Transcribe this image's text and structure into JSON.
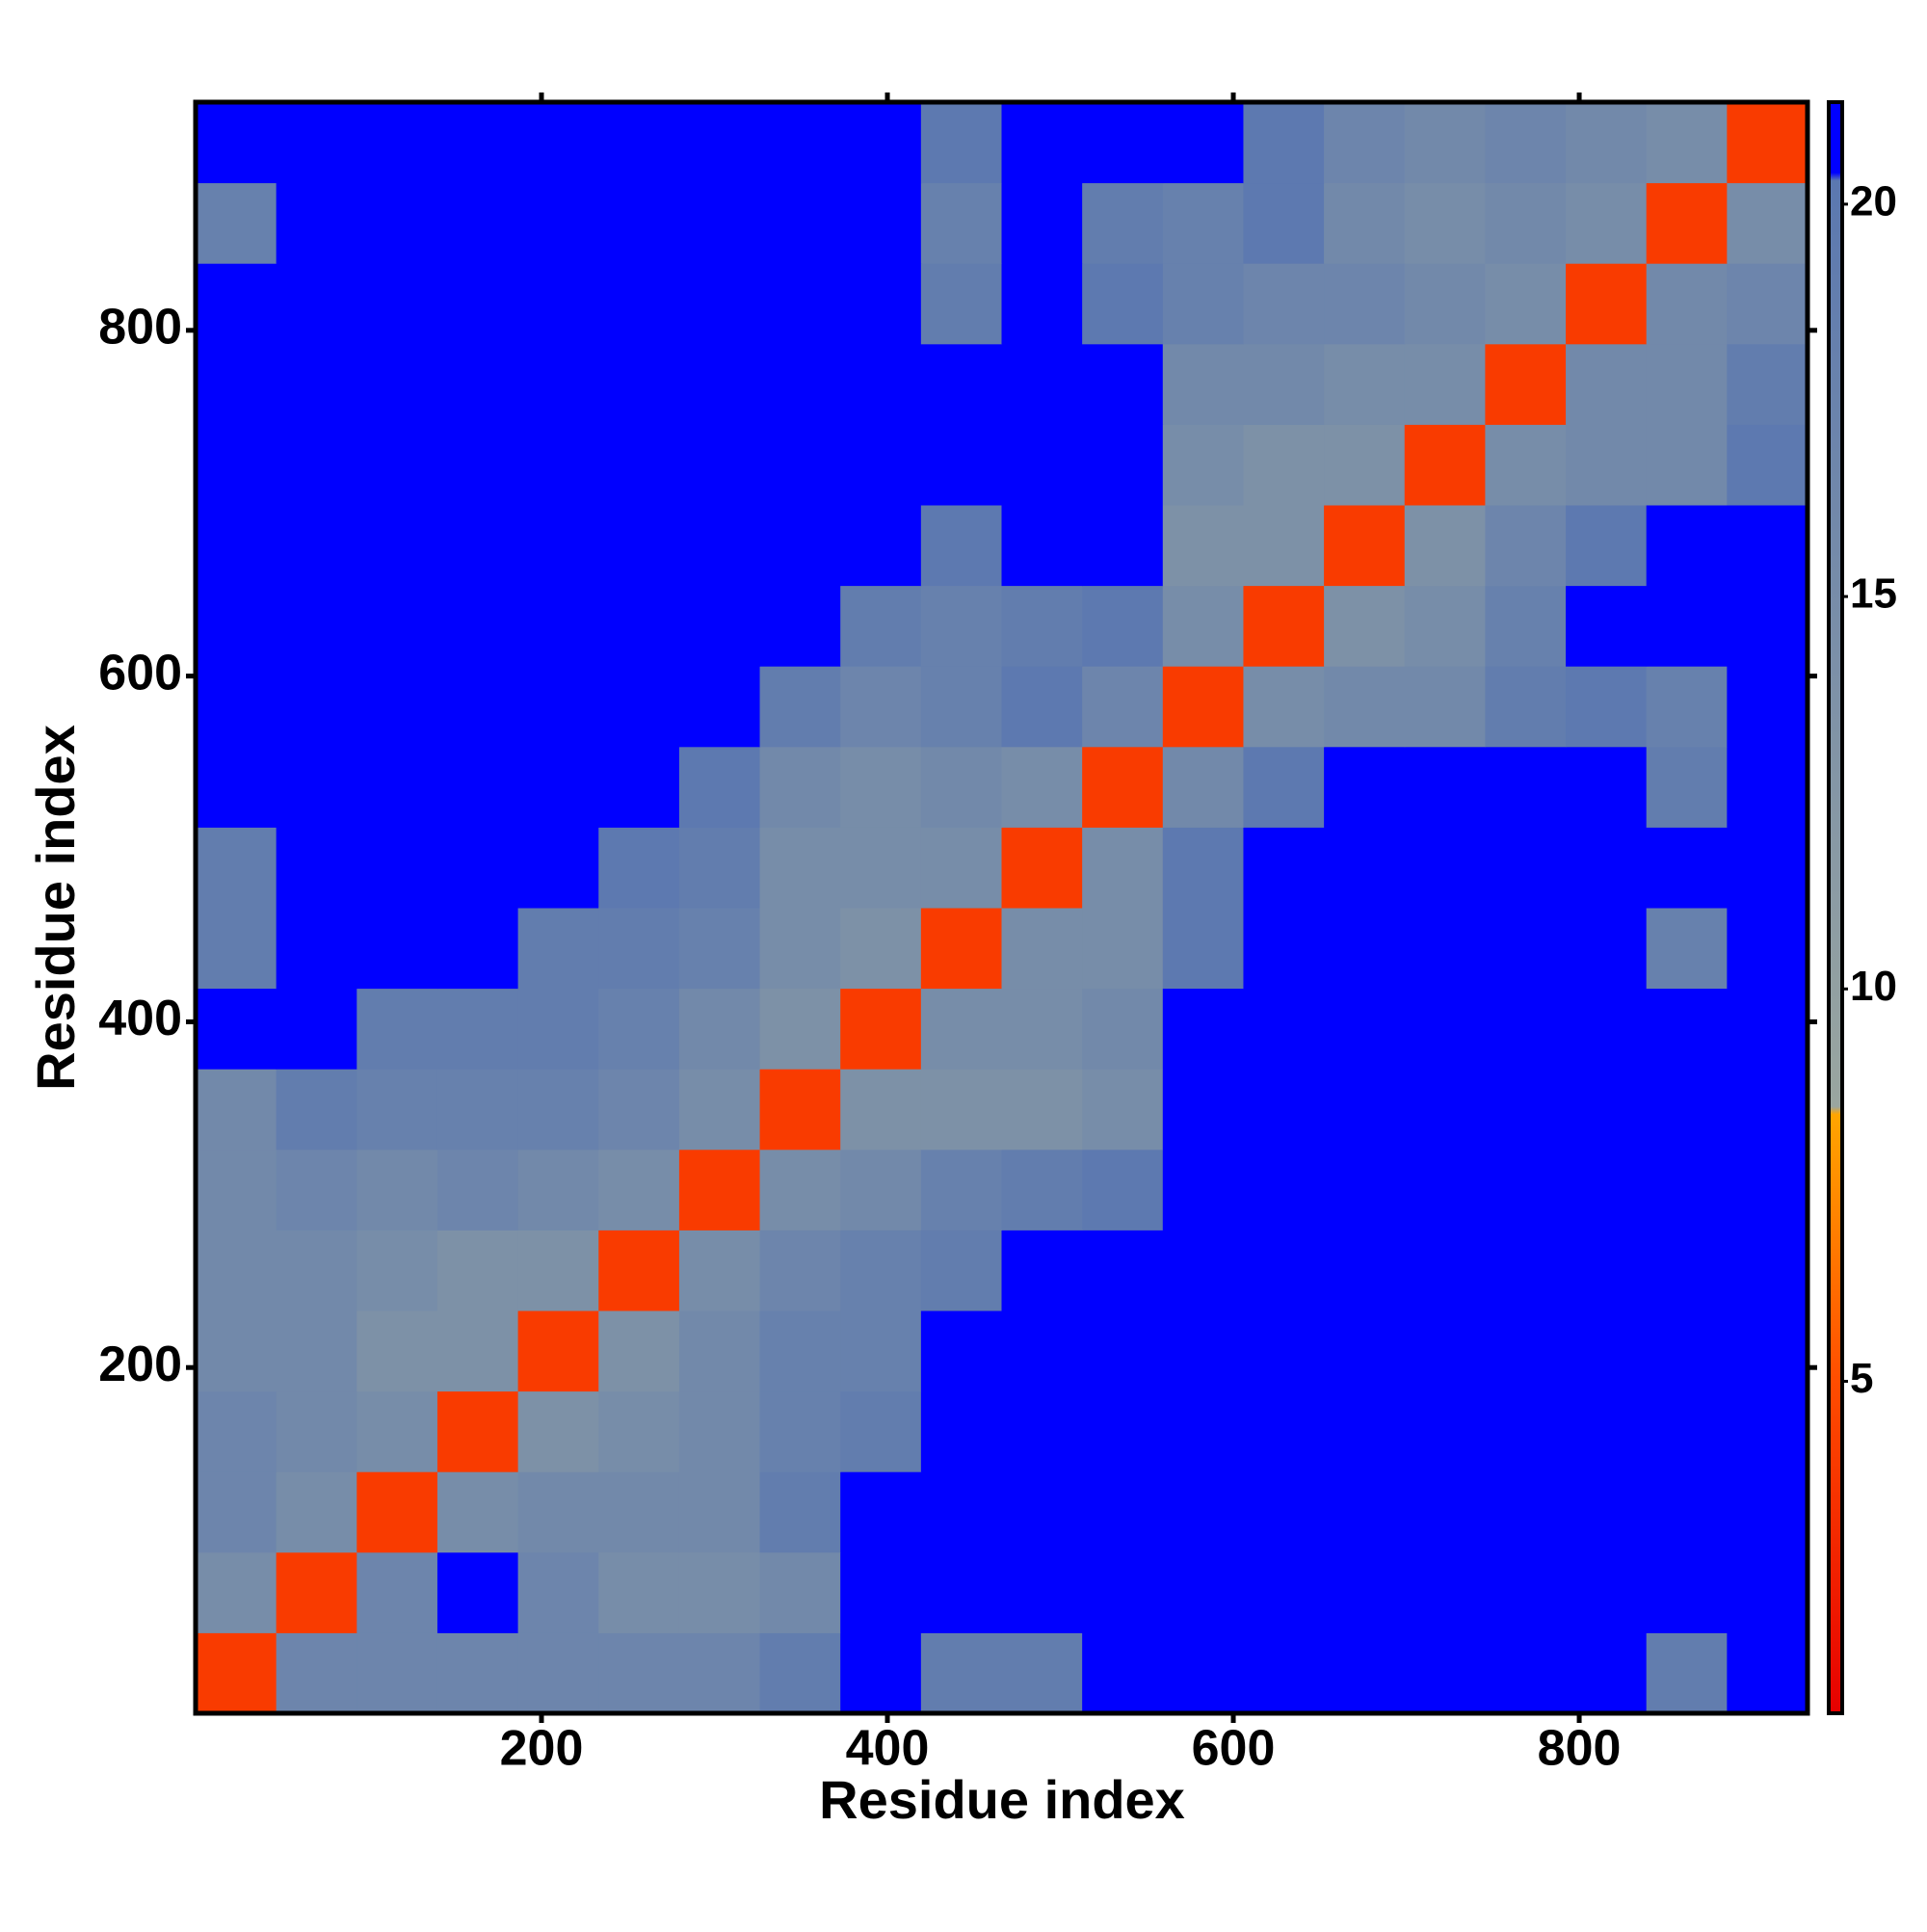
{
  "chart_data": {
    "type": "heatmap",
    "xlabel": "Residue index",
    "ylabel": "Residue index",
    "xlim": [
      0,
      932
    ],
    "ylim": [
      0,
      932
    ],
    "xticks": [
      200,
      400,
      600,
      800
    ],
    "yticks": [
      200,
      400,
      600,
      800
    ],
    "xbins": [
      0,
      46.6,
      93.2,
      139.8,
      186.4,
      233,
      279.6,
      326.2,
      372.8,
      419.4,
      466,
      512.6,
      559.2,
      605.8,
      652.4,
      699,
      745.6,
      792.2,
      838.8,
      885.4,
      932
    ],
    "ybins": [
      0,
      46.6,
      93.2,
      139.8,
      186.4,
      233,
      279.6,
      326.2,
      372.8,
      419.4,
      466,
      512.6,
      559.2,
      605.8,
      652.4,
      699,
      745.6,
      792.2,
      838.8,
      885.4,
      932
    ],
    "z": [
      [
        4,
        17,
        17,
        17,
        17,
        17,
        17,
        19,
        21,
        19,
        19,
        21,
        21,
        21,
        21,
        21,
        21,
        21,
        19,
        21
      ],
      [
        15,
        4,
        17,
        21,
        17,
        15,
        15,
        16,
        21,
        21,
        21,
        21,
        21,
        21,
        21,
        21,
        21,
        21,
        21,
        21
      ],
      [
        17,
        15,
        4,
        15,
        16,
        16,
        16,
        19,
        21,
        21,
        21,
        21,
        21,
        21,
        21,
        21,
        21,
        21,
        21,
        21
      ],
      [
        17,
        16,
        15,
        4,
        14,
        15,
        16,
        18,
        19,
        21,
        21,
        21,
        21,
        21,
        21,
        21,
        21,
        21,
        21,
        21
      ],
      [
        16,
        16,
        14,
        14,
        4,
        14,
        16,
        18,
        18,
        21,
        21,
        21,
        21,
        21,
        21,
        21,
        21,
        21,
        21,
        21
      ],
      [
        16,
        16,
        15,
        14,
        14,
        4,
        15,
        17,
        18,
        19,
        21,
        21,
        21,
        21,
        21,
        21,
        21,
        21,
        21,
        21
      ],
      [
        16,
        17,
        16,
        17,
        16,
        15,
        4,
        15,
        16,
        18,
        19,
        20,
        21,
        21,
        21,
        21,
        21,
        21,
        21,
        21
      ],
      [
        16,
        19,
        18,
        18,
        18,
        17,
        15,
        4,
        14,
        14,
        14,
        15,
        21,
        21,
        21,
        21,
        21,
        21,
        21,
        21
      ],
      [
        21,
        21,
        19,
        19,
        19,
        18,
        16,
        14,
        4,
        15,
        15,
        16,
        21,
        21,
        21,
        21,
        21,
        21,
        21,
        21
      ],
      [
        19,
        21,
        21,
        21,
        19,
        19,
        18,
        15,
        14,
        4,
        15,
        15,
        20,
        21,
        21,
        21,
        21,
        21,
        18,
        21
      ],
      [
        19,
        21,
        21,
        21,
        21,
        20,
        19,
        15,
        15,
        15,
        4,
        15,
        20,
        21,
        21,
        21,
        21,
        21,
        21,
        21
      ],
      [
        21,
        21,
        21,
        21,
        21,
        21,
        20,
        16,
        15,
        16,
        15,
        4,
        16,
        20,
        21,
        21,
        21,
        21,
        19,
        21
      ],
      [
        21,
        21,
        21,
        21,
        21,
        21,
        21,
        19,
        17,
        18,
        20,
        17,
        4,
        15,
        16,
        16,
        19,
        20,
        18,
        21
      ],
      [
        21,
        21,
        21,
        21,
        21,
        21,
        21,
        21,
        19,
        18,
        19,
        20,
        15,
        4,
        14,
        15,
        18,
        21,
        21,
        21
      ],
      [
        21,
        21,
        21,
        21,
        21,
        21,
        21,
        21,
        21,
        20,
        21,
        21,
        14,
        14,
        4,
        14,
        17,
        20,
        21,
        21
      ],
      [
        21,
        21,
        21,
        21,
        21,
        21,
        21,
        21,
        21,
        21,
        21,
        21,
        15,
        14,
        14,
        4,
        15,
        16,
        16,
        20
      ],
      [
        21,
        21,
        21,
        21,
        21,
        21,
        21,
        21,
        21,
        21,
        21,
        21,
        16,
        16,
        15,
        15,
        4,
        16,
        16,
        19
      ],
      [
        21,
        21,
        21,
        21,
        21,
        21,
        21,
        21,
        21,
        19,
        21,
        20,
        18,
        17,
        17,
        16,
        15,
        4,
        16,
        17
      ],
      [
        18,
        21,
        21,
        21,
        21,
        21,
        21,
        21,
        21,
        18,
        21,
        19,
        18,
        20,
        16,
        15,
        16,
        15,
        4,
        15
      ],
      [
        21,
        21,
        21,
        21,
        21,
        21,
        21,
        21,
        21,
        20,
        21,
        21,
        21,
        20,
        17,
        16,
        17,
        16,
        15,
        4
      ]
    ],
    "zlim": [
      0.77,
      21.3
    ],
    "zticks": [
      5,
      10,
      15,
      20
    ],
    "colorscale": [
      [
        0.77,
        "#e60000"
      ],
      [
        5,
        "#ff4d00"
      ],
      [
        8.4,
        "#ffa500"
      ],
      [
        8.5,
        "#9aa6a0"
      ],
      [
        20.3,
        "#5b78b0"
      ],
      [
        20.4,
        "#0000ff"
      ],
      [
        21.3,
        "#0000ff"
      ]
    ]
  }
}
